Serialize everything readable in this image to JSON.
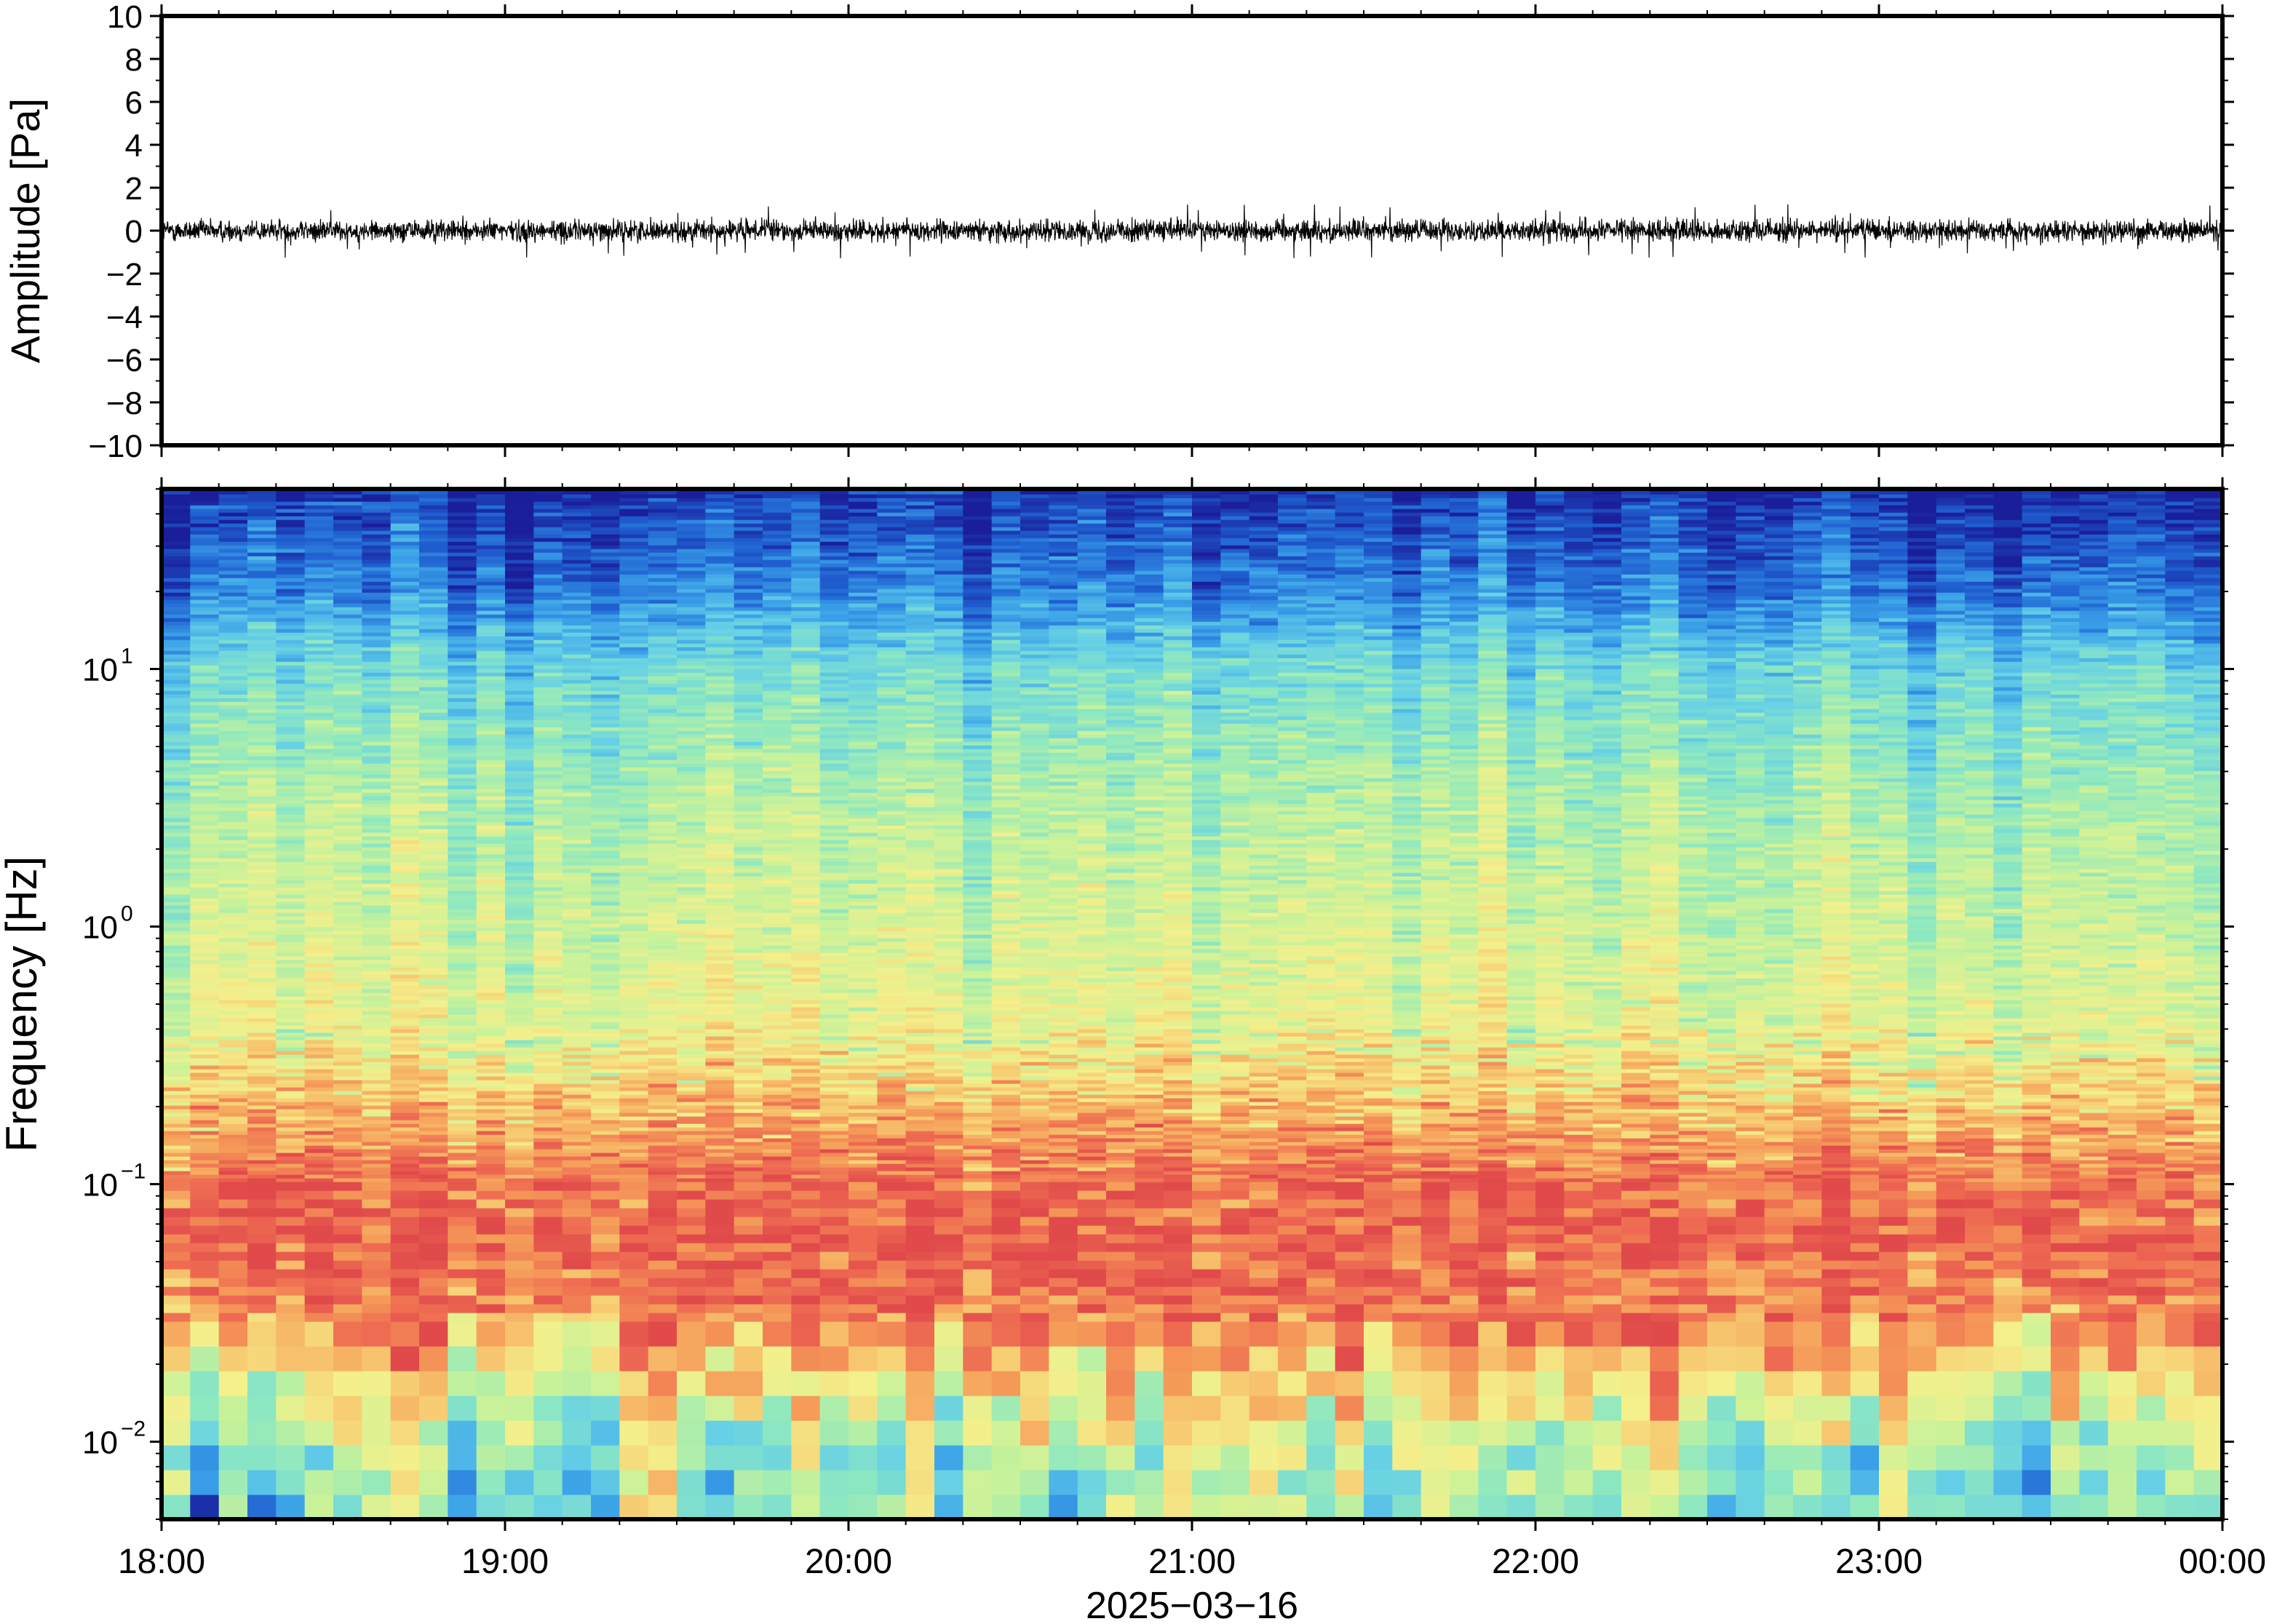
{
  "chart_data": [
    {
      "type": "line",
      "title": "",
      "xlabel": "",
      "ylabel": "Amplitude [Pa]",
      "ylim": [
        -10,
        10
      ],
      "y_ticks": [
        "10",
        "8",
        "6",
        "4",
        "2",
        "0",
        "−2",
        "−4",
        "−6",
        "−8",
        "−10"
      ],
      "y_tick_values": [
        10,
        8,
        6,
        4,
        2,
        0,
        -2,
        -4,
        -6,
        -8,
        -10
      ],
      "x_range": [
        "18:00",
        "00:00"
      ],
      "grid": false,
      "series": [
        {
          "color": "#000000",
          "baseline": 0.0,
          "typical_amplitude": 0.45,
          "peak_amplitude": 1.3
        }
      ]
    },
    {
      "type": "heatmap",
      "title": "",
      "ylabel": "Frequency [Hz]",
      "scale": "log",
      "ylim": [
        0.005,
        50
      ],
      "y_ticks": [
        {
          "value": 10,
          "base": "10",
          "exp": "1"
        },
        {
          "value": 1,
          "base": "10",
          "exp": "0"
        },
        {
          "value": 0.1,
          "base": "10",
          "exp": "−1"
        },
        {
          "value": 0.01,
          "base": "10",
          "exp": "−2"
        }
      ],
      "colormap": "jet-like (blue = low, red = high)",
      "colors": [
        "#1a1e9a",
        "#1f5fd0",
        "#3aa0e8",
        "#66d0e6",
        "#8ee8c0",
        "#c8f29a",
        "#f4f08c",
        "#f7c870",
        "#f59a58",
        "#ee6a52",
        "#e04a4a"
      ],
      "features": [
        "low values above ~20 Hz (blue)",
        "strongest power between ~0.03 and ~0.2 Hz (red/orange)",
        "weaker power below ~0.015 Hz (cyan/green)"
      ]
    }
  ],
  "x_axis": {
    "tick_labels": [
      "18:00",
      "19:00",
      "20:00",
      "21:00",
      "22:00",
      "23:00",
      "00:00"
    ],
    "date_label": "2025−03−16"
  }
}
